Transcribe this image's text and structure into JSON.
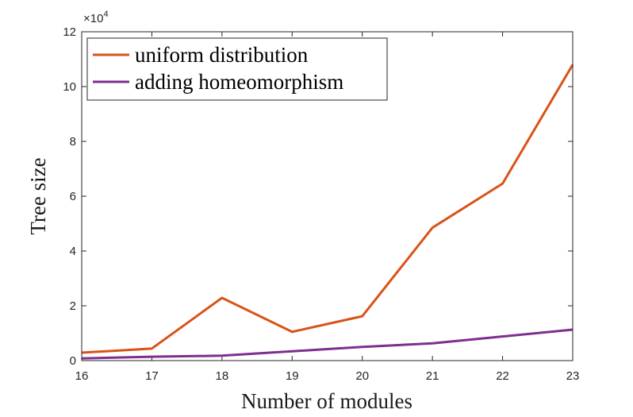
{
  "chart_data": {
    "type": "line",
    "x": [
      16,
      17,
      18,
      19,
      20,
      21,
      22,
      23
    ],
    "series": [
      {
        "name": "uniform distribution",
        "color": "#d95319",
        "values": [
          2900,
          4400,
          22900,
          10500,
          16200,
          48500,
          64600,
          108000
        ]
      },
      {
        "name": "adding homeomorphism",
        "color": "#7e2f8e",
        "values": [
          800,
          1400,
          1800,
          3400,
          5000,
          6300,
          8800,
          11300
        ]
      }
    ],
    "xlabel": "Number of modules",
    "ylabel": "Tree size",
    "xlim": [
      16,
      23
    ],
    "ylim": [
      0,
      120000
    ],
    "x_ticks": [
      "16",
      "17",
      "18",
      "19",
      "20",
      "21",
      "22",
      "23"
    ],
    "y_ticks": [
      "0",
      "2",
      "4",
      "6",
      "8",
      "10",
      "12"
    ],
    "y_exponent_base": "×10",
    "y_exponent_power": "4",
    "grid": false,
    "legend_position": "top-left"
  }
}
